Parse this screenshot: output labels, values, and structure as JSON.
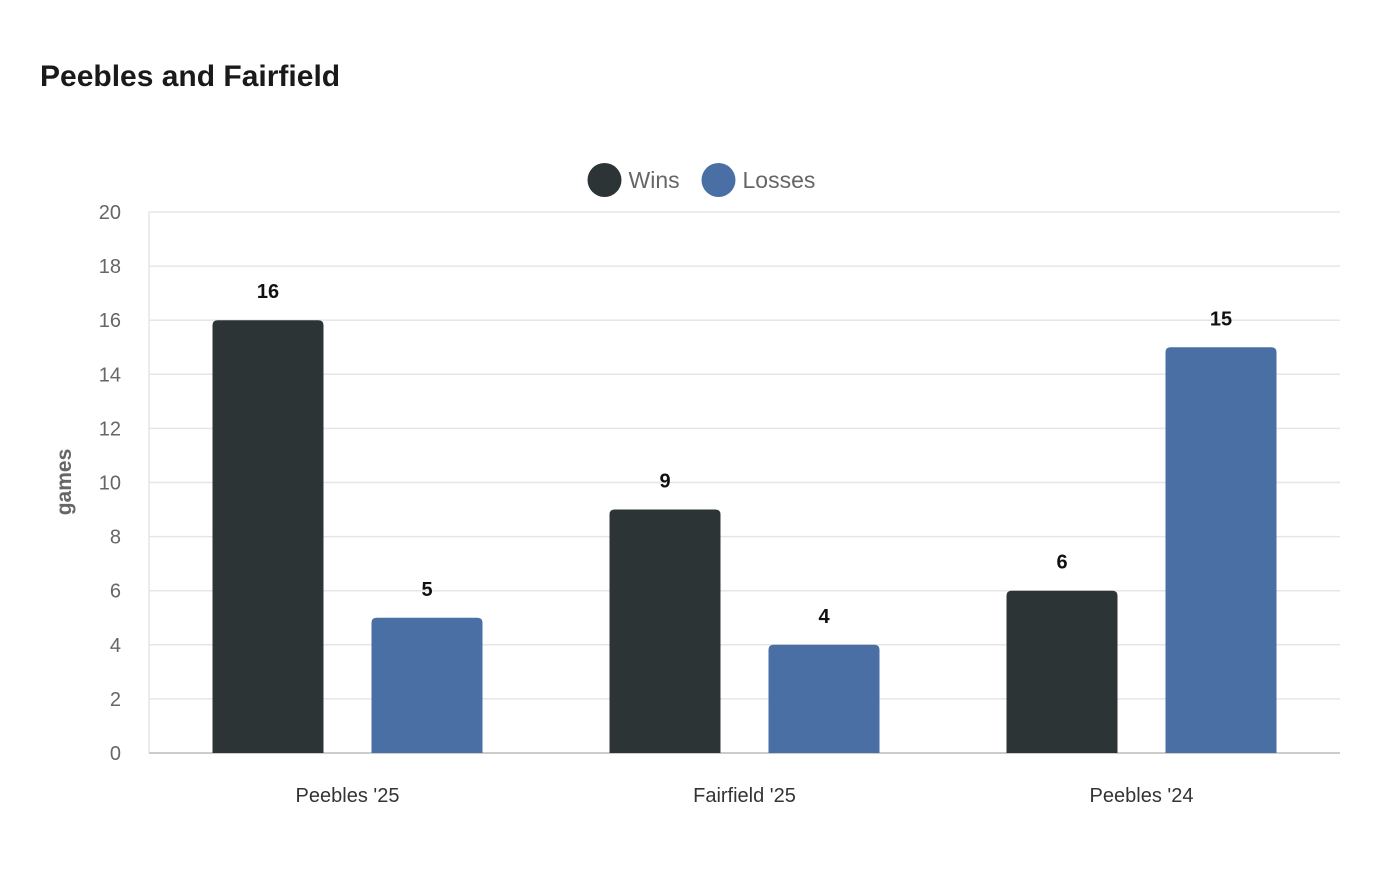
{
  "chart_data": {
    "type": "bar",
    "title": "Peebles and Fairfield",
    "ylabel": "games",
    "xlabel": "",
    "categories": [
      "Peebles '25",
      "Fairfield '25",
      "Peebles '24"
    ],
    "series": [
      {
        "name": "Wins",
        "values": [
          16,
          9,
          6
        ],
        "color": "#2d3436"
      },
      {
        "name": "Losses",
        "values": [
          5,
          4,
          15
        ],
        "color": "#4a6fa5"
      }
    ],
    "ylim": [
      0,
      20
    ],
    "yticks": [
      0,
      2,
      4,
      6,
      8,
      10,
      12,
      14,
      16,
      18,
      20
    ],
    "grid": true,
    "legend_position": "top-center",
    "data_labels": true
  }
}
